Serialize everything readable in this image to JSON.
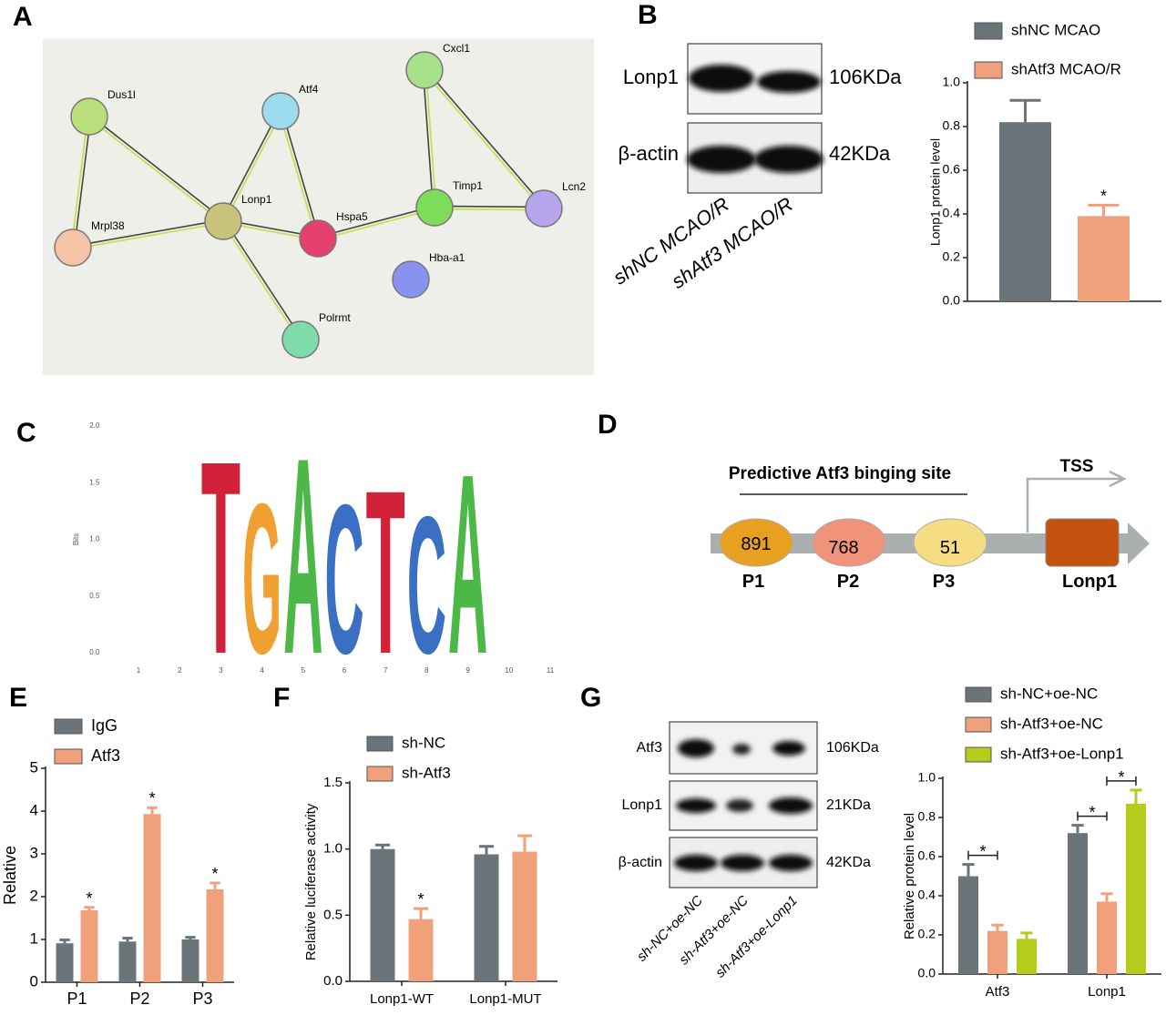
{
  "panels": [
    "A",
    "B",
    "C",
    "D",
    "E",
    "F",
    "G"
  ],
  "network": {
    "nodes": [
      "Dus1l",
      "Atf4",
      "Cxcl1",
      "Lonp1",
      "Mrpl38",
      "Hspa5",
      "Timp1",
      "Lcn2",
      "Hba-a1",
      "Polrmt"
    ]
  },
  "blot_b": {
    "proteins": [
      "Lonp1",
      "β-actin"
    ],
    "sizes": [
      "106KDa",
      "42KDa"
    ],
    "lanes": [
      "shNC MCAO/R",
      "shAtf3 MCAO/R"
    ]
  },
  "diagram_d": {
    "title": "Predictive Atf3 binging site",
    "tss": "TSS",
    "sites": [
      {
        "position": "891",
        "name": "P1"
      },
      {
        "position": "768",
        "name": "P2"
      },
      {
        "position": "51",
        "name": "P3"
      }
    ],
    "gene": "Lonp1"
  },
  "blot_g": {
    "proteins": [
      "Atf3",
      "Lonp1",
      "β-actin"
    ],
    "sizes": [
      "106KDa",
      "21KDa",
      "42KDa"
    ],
    "lanes": [
      "sh-NC+oe-NC",
      "sh-Atf3+oe-NC",
      "sh-Atf3+oe-Lonp1"
    ]
  },
  "chart_data": [
    {
      "type": "bar",
      "y_label": "Lonp1 protein level",
      "categories": [
        null
      ],
      "legend": "above",
      "series": [
        {
          "name": "shNC MCAO",
          "color": "#6b7479",
          "values": [
            0.82
          ],
          "errors": [
            0.1
          ],
          "annotations": [
            null
          ]
        },
        {
          "name": "shAtf3 MCAO/R",
          "color": "#f0a07a",
          "values": [
            0.39
          ],
          "errors": [
            0.05
          ],
          "annotations": [
            "*"
          ]
        }
      ],
      "ylim": [
        0,
        1
      ],
      "yticks": [
        {
          "value": 0,
          "label": "0.0"
        },
        {
          "value": 0.2,
          "label": "0.2"
        },
        {
          "value": 0.4,
          "label": "0.4"
        },
        {
          "value": 0.6,
          "label": "0.6"
        },
        {
          "value": 0.8,
          "label": "0.8"
        },
        {
          "value": 1,
          "label": "1.0"
        }
      ]
    },
    {
      "type": "logo",
      "y_label": "Bits",
      "x": [
        3,
        4,
        5,
        6,
        7,
        8,
        9
      ],
      "letters": [
        "T",
        "G",
        "A",
        "C",
        "T",
        "C",
        "A"
      ],
      "values": [
        1.77,
        1.38,
        1.8,
        1.37,
        1.5,
        1.26,
        1.65
      ],
      "letter_colors": {
        "A": "#4cb848",
        "C": "#3a6fc4",
        "G": "#f0a030",
        "T": "#d2223a"
      },
      "xlim": [
        0.5,
        11.5
      ],
      "xticks": [
        1,
        2,
        3,
        4,
        5,
        6,
        7,
        8,
        9,
        10,
        11
      ],
      "ylim": [
        0,
        2
      ],
      "yticks": [
        {
          "value": 0,
          "label": "0.0"
        },
        {
          "value": 0.5,
          "label": "0.5"
        },
        {
          "value": 1,
          "label": "1.0"
        },
        {
          "value": 1.5,
          "label": "1.5"
        },
        {
          "value": 2,
          "label": "2.0"
        }
      ]
    },
    {
      "type": "bar",
      "y_label": "Relative",
      "categories": [
        "P1",
        "P2",
        "P3"
      ],
      "legend": "above",
      "series": [
        {
          "name": "IgG",
          "color": "#6b7479",
          "values": [
            0.91,
            0.95,
            1.0
          ],
          "errors": [
            0.08,
            0.08,
            0.05
          ],
          "annotations": [
            null,
            null,
            null
          ]
        },
        {
          "name": "Atf3",
          "color": "#f0a07a",
          "values": [
            1.68,
            3.93,
            2.17
          ],
          "errors": [
            0.07,
            0.15,
            0.15
          ],
          "annotations": [
            "*",
            "*",
            "*"
          ]
        }
      ],
      "ylim": [
        0,
        5
      ],
      "yticks": [
        0,
        1,
        2,
        3,
        4,
        5
      ]
    },
    {
      "type": "bar",
      "y_label": "Relative luciferase activity",
      "categories": [
        "Lonp1-WT",
        "Lonp1-MUT"
      ],
      "legend": "above",
      "series": [
        {
          "name": "sh-NC",
          "color": "#6b7479",
          "values": [
            1.0,
            0.96
          ],
          "errors": [
            0.03,
            0.06
          ],
          "annotations": [
            null,
            null
          ]
        },
        {
          "name": "sh-Atf3",
          "color": "#f0a07a",
          "values": [
            0.47,
            0.98
          ],
          "errors": [
            0.08,
            0.12
          ],
          "annotations": [
            "*",
            null
          ]
        }
      ],
      "ylim": [
        0,
        1.5
      ],
      "yticks": [
        {
          "value": 0,
          "label": "0.0"
        },
        {
          "value": 0.5,
          "label": "0.5"
        },
        {
          "value": 1,
          "label": "1.0"
        },
        {
          "value": 1.5,
          "label": "1.5"
        }
      ]
    },
    {
      "type": "bar",
      "y_label": "Relative protein level",
      "categories": [
        "Atf3",
        "Lonp1"
      ],
      "legend": "above",
      "significance_brackets": true,
      "series": [
        {
          "name": "sh-NC+oe-NC",
          "color": "#6b7479",
          "values": [
            0.5,
            0.72
          ],
          "errors": [
            0.06,
            0.04
          ],
          "annotations": [
            null,
            null
          ]
        },
        {
          "name": "sh-Atf3+oe-NC",
          "color": "#f0a07a",
          "values": [
            0.22,
            0.37
          ],
          "errors": [
            0.03,
            0.04
          ],
          "annotations": [
            "*",
            "*"
          ]
        },
        {
          "name": "sh-Atf3+oe-Lonp1",
          "color": "#b5cc1c",
          "values": [
            0.18,
            0.87
          ],
          "errors": [
            0.03,
            0.07
          ],
          "annotations": [
            null,
            "*"
          ]
        }
      ],
      "ylim": [
        0,
        1
      ],
      "yticks": [
        {
          "value": 0,
          "label": "0.0"
        },
        {
          "value": 0.2,
          "label": "0.2"
        },
        {
          "value": 0.4,
          "label": "0.4"
        },
        {
          "value": 0.6,
          "label": "0.6"
        },
        {
          "value": 0.8,
          "label": "0.8"
        },
        {
          "value": 1,
          "label": "1.0"
        }
      ]
    }
  ]
}
